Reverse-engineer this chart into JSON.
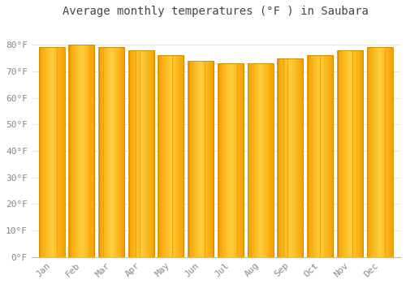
{
  "months": [
    "Jan",
    "Feb",
    "Mar",
    "Apr",
    "May",
    "Jun",
    "Jul",
    "Aug",
    "Sep",
    "Oct",
    "Nov",
    "Dec"
  ],
  "values": [
    79,
    80,
    79,
    78,
    76,
    74,
    73,
    73,
    75,
    76,
    78,
    79
  ],
  "bar_color_center": "#FFD040",
  "bar_color_edge": "#F5A000",
  "title": "Average monthly temperatures (°F ) in Saubara",
  "ylim": [
    0,
    88
  ],
  "yticks": [
    0,
    10,
    20,
    30,
    40,
    50,
    60,
    70,
    80
  ],
  "ytick_labels": [
    "0°F",
    "10°F",
    "20°F",
    "30°F",
    "40°F",
    "50°F",
    "60°F",
    "70°F",
    "80°F"
  ],
  "background_color": "#ffffff",
  "grid_color": "#e8e8e8",
  "title_fontsize": 10,
  "tick_fontsize": 8,
  "bar_width": 0.85
}
